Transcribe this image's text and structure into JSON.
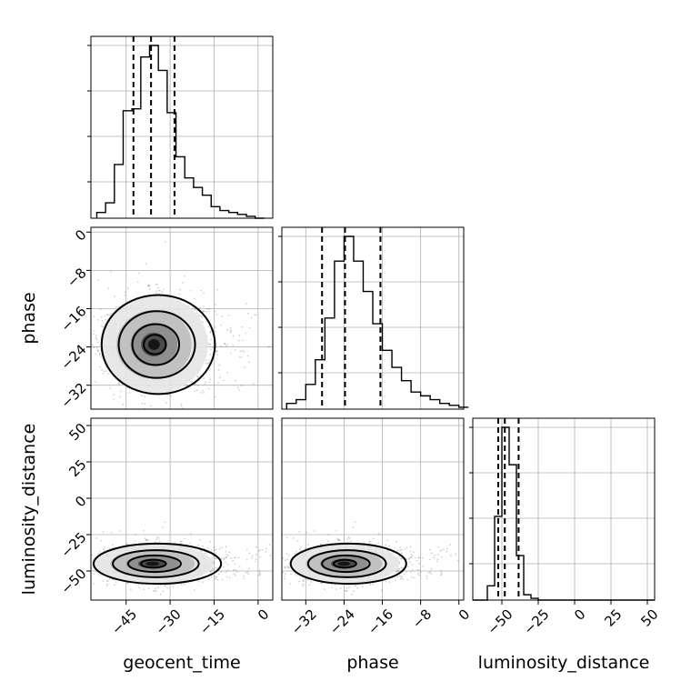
{
  "chart_data": {
    "type": "corner",
    "parameters": [
      "geocent_time",
      "phase",
      "luminosity_distance"
    ],
    "axes": {
      "geocent_time": {
        "label": "geocent_time",
        "range": [
          -57,
          5
        ],
        "ticks": [
          -45,
          -30,
          -15,
          0
        ],
        "tick_labels": [
          "−45",
          "−30",
          "−15",
          "0"
        ]
      },
      "phase": {
        "label": "phase",
        "range": [
          -37,
          1
        ],
        "ticks": [
          -32,
          -24,
          -16,
          -8,
          0
        ],
        "tick_labels": [
          "−32",
          "−24",
          "−16",
          "−8",
          "0"
        ]
      },
      "luminosity_distance": {
        "label": "luminosity_distance",
        "range": [
          -70,
          55
        ],
        "ticks": [
          -50,
          -25,
          0,
          25,
          50
        ],
        "tick_labels": [
          "−50",
          "−25",
          "0",
          "25",
          "50"
        ]
      }
    },
    "marginals": [
      {
        "parameter": "geocent_time",
        "bin_edges": [
          -55,
          -52,
          -49,
          -46,
          -43,
          -40,
          -37,
          -34,
          -31,
          -28,
          -25,
          -22,
          -19,
          -16,
          -13,
          -10,
          -7,
          -4,
          -1,
          2
        ],
        "counts": [
          0.03,
          0.08,
          0.28,
          0.56,
          0.57,
          0.84,
          0.9,
          0.77,
          0.55,
          0.32,
          0.21,
          0.16,
          0.12,
          0.06,
          0.04,
          0.03,
          0.02,
          0.01,
          0.0
        ],
        "quantiles": [
          -42.5,
          -36.5,
          -28.5
        ]
      },
      {
        "parameter": "phase",
        "bin_edges": [
          -36,
          -34,
          -32,
          -30,
          -28,
          -26,
          -24,
          -22,
          -20,
          -18,
          -16,
          -14,
          -12,
          -10,
          -8,
          -6,
          -4,
          -2,
          0,
          2
        ],
        "counts": [
          0.03,
          0.05,
          0.13,
          0.26,
          0.48,
          0.78,
          0.91,
          0.78,
          0.62,
          0.45,
          0.31,
          0.22,
          0.15,
          0.09,
          0.07,
          0.05,
          0.03,
          0.02,
          0.01
        ],
        "quantiles": [
          -28.6,
          -23.8,
          -16.4
        ]
      },
      {
        "parameter": "luminosity_distance",
        "bin_edges": [
          -70,
          -65,
          -60,
          -55,
          -50,
          -45,
          -40,
          -35,
          -30,
          -25,
          -20,
          -15,
          -10,
          -5,
          0,
          5,
          10,
          15,
          20,
          25,
          30,
          35,
          40,
          45,
          50,
          55
        ],
        "counts": [
          0,
          0,
          0.08,
          0.47,
          0.97,
          0.76,
          0.25,
          0.03,
          0.01,
          0,
          0,
          0,
          0,
          0,
          0,
          0,
          0,
          0,
          0,
          0,
          0,
          0,
          0,
          0,
          0
        ],
        "quantiles": [
          -52.5,
          -48.0,
          -38.5
        ]
      }
    ],
    "joints": [
      {
        "x": "geocent_time",
        "y": "phase",
        "peak": [
          -35.5,
          -23.5
        ]
      },
      {
        "x": "geocent_time",
        "y": "luminosity_distance",
        "peak": [
          -36,
          -45
        ]
      },
      {
        "x": "phase",
        "y": "luminosity_distance",
        "peak": [
          -24,
          -45
        ]
      }
    ]
  }
}
